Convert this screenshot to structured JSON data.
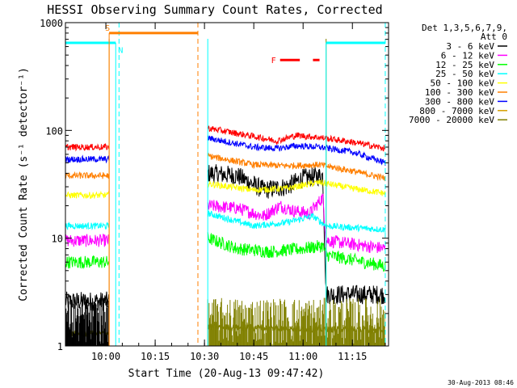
{
  "chart_data": {
    "type": "line",
    "title": "HESSI Observing Summary Count Rates, Corrected",
    "xlabel": "Start Time (20-Aug-13 09:47:42)",
    "ylabel": "Corrected Count Rate (s⁻¹ detector⁻¹)",
    "y_scale": "log",
    "ylim": [
      1,
      1000
    ],
    "xlim": [
      "09:47:42",
      "11:26:00"
    ],
    "x_ticks": [
      "10:00",
      "10:15",
      "10:30",
      "10:45",
      "11:00",
      "11:15"
    ],
    "y_ticks": [
      "1",
      "10",
      "100",
      "1000"
    ],
    "grid": false,
    "legend_placement": "right, outside plot",
    "legend_header": [
      "Det 1,3,5,6,7,9,",
      "Att 0"
    ],
    "timestamp": "30-Aug-2013 08:46",
    "annotations": [
      {
        "text": "S",
        "color": "#ff7f00"
      },
      {
        "text": "N",
        "color": "#00ffff"
      },
      {
        "text": "F",
        "color": "#ff0000"
      }
    ],
    "bars": {
      "N": {
        "color": "#00ffff",
        "level": 650,
        "intervals": [
          [
            "09:47:42",
            "10:03:00"
          ],
          [
            "11:07:00",
            "11:25:00"
          ]
        ]
      },
      "S": {
        "color": "#ff7f00",
        "level": 800,
        "intervals": [
          [
            "10:01:00",
            "10:28:00"
          ]
        ]
      },
      "F": {
        "color": "#ff0000",
        "level": 450,
        "intervals": [
          [
            "10:53:00",
            "10:59:00"
          ],
          [
            "11:03:00",
            "11:05:00"
          ]
        ]
      }
    },
    "markers": [
      {
        "time": "10:04:00",
        "color": "#00ffff",
        "style": "dashed"
      },
      {
        "time": "10:28:00",
        "color": "#ff7f00",
        "style": "dashed"
      },
      {
        "time": "11:25:00",
        "color": "#00ffff",
        "style": "dashed"
      }
    ],
    "segments": [
      {
        "start": "09:47:42",
        "end": "10:01:00"
      },
      {
        "start": "10:31:00",
        "end": "11:25:00"
      }
    ],
    "series": [
      {
        "name": "3 - 6 keV",
        "color": "#000000",
        "seg1": 2.6,
        "seg2_points": [
          [
            "10:31",
            40
          ],
          [
            "10:40",
            38
          ],
          [
            "10:48",
            28
          ],
          [
            "10:55",
            30
          ],
          [
            "11:00",
            36
          ],
          [
            "11:06",
            38
          ],
          [
            "11:07",
            3
          ],
          [
            "11:25",
            3
          ]
        ]
      },
      {
        "name": "6 - 12 keV",
        "color": "#ff00ff",
        "seg1": 9.5,
        "seg2_points": [
          [
            "10:31",
            20
          ],
          [
            "10:40",
            19
          ],
          [
            "10:48",
            16
          ],
          [
            "10:53",
            20
          ],
          [
            "10:57",
            18
          ],
          [
            "11:02",
            17
          ],
          [
            "11:06",
            24
          ],
          [
            "11:07",
            9.5
          ],
          [
            "11:25",
            8
          ]
        ]
      },
      {
        "name": "12 - 25 keV",
        "color": "#00ff00",
        "seg1": 6,
        "seg2_points": [
          [
            "10:31",
            10
          ],
          [
            "10:40",
            8
          ],
          [
            "10:50",
            7.5
          ],
          [
            "11:00",
            8
          ],
          [
            "11:06",
            8.5
          ],
          [
            "11:07",
            7
          ],
          [
            "11:25",
            5.5
          ]
        ]
      },
      {
        "name": "25 - 50 keV",
        "color": "#00ffff",
        "seg1": 13,
        "seg2_points": [
          [
            "10:31",
            17
          ],
          [
            "10:45",
            13
          ],
          [
            "10:55",
            14
          ],
          [
            "11:03",
            16
          ],
          [
            "11:07",
            13
          ],
          [
            "11:25",
            12
          ]
        ]
      },
      {
        "name": "50 - 100 keV",
        "color": "#ffff00",
        "seg1": 25,
        "seg2_points": [
          [
            "10:31",
            32
          ],
          [
            "10:45",
            28
          ],
          [
            "10:55",
            29
          ],
          [
            "11:05",
            33
          ],
          [
            "11:15",
            29
          ],
          [
            "11:25",
            26
          ]
        ]
      },
      {
        "name": "100 - 300 keV",
        "color": "#ff7f00",
        "seg1": 38,
        "seg2_points": [
          [
            "10:31",
            58
          ],
          [
            "10:45",
            48
          ],
          [
            "10:55",
            47
          ],
          [
            "11:05",
            48
          ],
          [
            "11:15",
            42
          ],
          [
            "11:25",
            36
          ]
        ]
      },
      {
        "name": "300 - 800 keV",
        "color": "#0000ff",
        "seg1": 54,
        "seg2_points": [
          [
            "10:31",
            85
          ],
          [
            "10:45",
            70
          ],
          [
            "10:52",
            68
          ],
          [
            "10:58",
            72
          ],
          [
            "11:05",
            70
          ],
          [
            "11:15",
            63
          ],
          [
            "11:25",
            50
          ]
        ]
      },
      {
        "name": "800 - 7000 keV",
        "color": "#d6a000",
        "seg1": 0,
        "seg2_points": []
      },
      {
        "name": "7000 - 20000 keV",
        "color": "#808000",
        "seg1": 1.3,
        "seg2_points": [
          [
            "10:31",
            1.5
          ],
          [
            "11:25",
            1.4
          ]
        ]
      },
      {
        "name": "",
        "color": "#ff0000",
        "seg1": 70,
        "seg2_points": [
          [
            "10:31",
            105
          ],
          [
            "10:45",
            88
          ],
          [
            "10:52",
            80
          ],
          [
            "10:58",
            90
          ],
          [
            "11:05",
            86
          ],
          [
            "11:15",
            78
          ],
          [
            "11:25",
            68
          ]
        ]
      }
    ]
  }
}
